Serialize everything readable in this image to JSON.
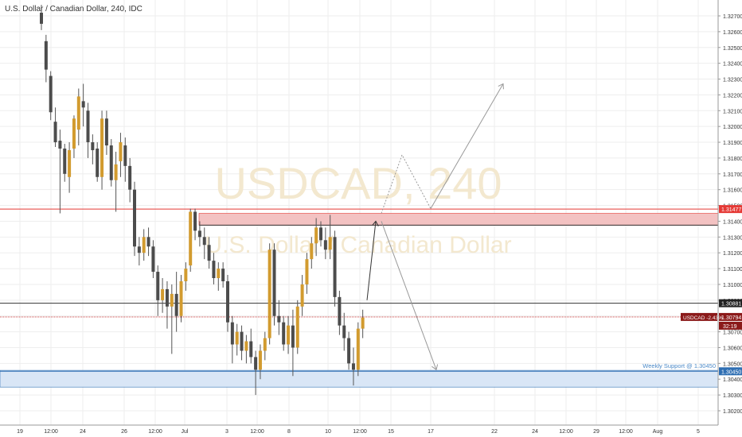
{
  "chart_title": "U.S. Dollar / Canadian Dollar, 240, IDC",
  "watermark": {
    "symbol": "USDCAD, 240",
    "name": "U.S. Dollar / Canadian Dollar"
  },
  "colors": {
    "bg": "#ffffff",
    "grid": "#eeeeee",
    "wick": "#555555",
    "bull": "#d29b2f",
    "bear": "#4c4c4c",
    "resistance": "#e53935",
    "support": "#2f6fb3",
    "price_line": "#c62828",
    "axis_text": "#333333",
    "watermark": "#efe3c6"
  },
  "chart_data": {
    "type": "candlestick",
    "title": "U.S. Dollar / Canadian Dollar, 240, IDC",
    "x_ticks": [
      "19",
      "12:00",
      "24",
      "26",
      "12:00",
      "Jul",
      "3",
      "12:00",
      "8",
      "10",
      "12:00",
      "15",
      "17",
      "22",
      "24",
      "12:00",
      "29",
      "12:00",
      "Aug",
      "5"
    ],
    "y_ticks": [
      "1.32700",
      "1.32600",
      "1.32500",
      "1.32400",
      "1.32300",
      "1.32200",
      "1.32100",
      "1.32000",
      "1.31900",
      "1.31800",
      "1.31700",
      "1.31600",
      "1.31500",
      "1.31400",
      "1.31300",
      "1.31200",
      "1.31100",
      "1.31000",
      "1.30900",
      "1.30800",
      "1.30700",
      "1.30600",
      "1.30500",
      "1.30400",
      "1.30300",
      "1.30200"
    ],
    "ylim": [
      1.3015,
      1.3277
    ],
    "candles": [
      {
        "o": 1.3272,
        "h": 1.3277,
        "l": 1.3261,
        "c": 1.3265
      },
      {
        "o": 1.3254,
        "h": 1.3258,
        "l": 1.3228,
        "c": 1.3236
      },
      {
        "o": 1.3232,
        "h": 1.3235,
        "l": 1.3204,
        "c": 1.3209
      },
      {
        "o": 1.3203,
        "h": 1.3212,
        "l": 1.3187,
        "c": 1.319
      },
      {
        "o": 1.3191,
        "h": 1.3198,
        "l": 1.3145,
        "c": 1.3186
      },
      {
        "o": 1.3186,
        "h": 1.3189,
        "l": 1.3165,
        "c": 1.317
      },
      {
        "o": 1.3168,
        "h": 1.319,
        "l": 1.3158,
        "c": 1.3185
      },
      {
        "o": 1.3186,
        "h": 1.3207,
        "l": 1.318,
        "c": 1.3205
      },
      {
        "o": 1.3198,
        "h": 1.3224,
        "l": 1.3188,
        "c": 1.3219
      },
      {
        "o": 1.3216,
        "h": 1.3227,
        "l": 1.32,
        "c": 1.3212
      },
      {
        "o": 1.321,
        "h": 1.3215,
        "l": 1.318,
        "c": 1.319
      },
      {
        "o": 1.319,
        "h": 1.3195,
        "l": 1.3176,
        "c": 1.3185
      },
      {
        "o": 1.3186,
        "h": 1.319,
        "l": 1.3165,
        "c": 1.3168
      },
      {
        "o": 1.3168,
        "h": 1.321,
        "l": 1.316,
        "c": 1.3205
      },
      {
        "o": 1.3205,
        "h": 1.321,
        "l": 1.3182,
        "c": 1.3188
      },
      {
        "o": 1.3188,
        "h": 1.3192,
        "l": 1.3162,
        "c": 1.3166
      },
      {
        "o": 1.3166,
        "h": 1.3184,
        "l": 1.3146,
        "c": 1.3176
      },
      {
        "o": 1.3178,
        "h": 1.3196,
        "l": 1.3168,
        "c": 1.319
      },
      {
        "o": 1.3188,
        "h": 1.3193,
        "l": 1.3165,
        "c": 1.3175
      },
      {
        "o": 1.3175,
        "h": 1.318,
        "l": 1.3152,
        "c": 1.316
      },
      {
        "o": 1.316,
        "h": 1.3165,
        "l": 1.3118,
        "c": 1.3124
      },
      {
        "o": 1.3124,
        "h": 1.313,
        "l": 1.3112,
        "c": 1.312
      },
      {
        "o": 1.312,
        "h": 1.3135,
        "l": 1.3115,
        "c": 1.313
      },
      {
        "o": 1.313,
        "h": 1.3136,
        "l": 1.3118,
        "c": 1.3124
      },
      {
        "o": 1.3124,
        "h": 1.3128,
        "l": 1.3104,
        "c": 1.3108
      },
      {
        "o": 1.3108,
        "h": 1.3112,
        "l": 1.308,
        "c": 1.309
      },
      {
        "o": 1.309,
        "h": 1.3104,
        "l": 1.3082,
        "c": 1.3097
      },
      {
        "o": 1.3097,
        "h": 1.3102,
        "l": 1.3072,
        "c": 1.3086
      },
      {
        "o": 1.3086,
        "h": 1.31,
        "l": 1.3056,
        "c": 1.3094
      },
      {
        "o": 1.3094,
        "h": 1.3108,
        "l": 1.307,
        "c": 1.308
      },
      {
        "o": 1.308,
        "h": 1.3106,
        "l": 1.3076,
        "c": 1.3102
      },
      {
        "o": 1.3102,
        "h": 1.3114,
        "l": 1.3096,
        "c": 1.311
      },
      {
        "o": 1.3112,
        "h": 1.3148,
        "l": 1.3108,
        "c": 1.3146
      },
      {
        "o": 1.3146,
        "h": 1.3148,
        "l": 1.3128,
        "c": 1.3134
      },
      {
        "o": 1.3134,
        "h": 1.314,
        "l": 1.3124,
        "c": 1.313
      },
      {
        "o": 1.313,
        "h": 1.3136,
        "l": 1.3116,
        "c": 1.3125
      },
      {
        "o": 1.3125,
        "h": 1.313,
        "l": 1.311,
        "c": 1.3115
      },
      {
        "o": 1.3115,
        "h": 1.312,
        "l": 1.31,
        "c": 1.3104
      },
      {
        "o": 1.3104,
        "h": 1.3114,
        "l": 1.3096,
        "c": 1.311
      },
      {
        "o": 1.311,
        "h": 1.3114,
        "l": 1.3098,
        "c": 1.3102
      },
      {
        "o": 1.3102,
        "h": 1.3106,
        "l": 1.307,
        "c": 1.3076
      },
      {
        "o": 1.3076,
        "h": 1.308,
        "l": 1.305,
        "c": 1.3062
      },
      {
        "o": 1.3062,
        "h": 1.3075,
        "l": 1.3055,
        "c": 1.307
      },
      {
        "o": 1.307,
        "h": 1.3074,
        "l": 1.3052,
        "c": 1.3058
      },
      {
        "o": 1.3058,
        "h": 1.3068,
        "l": 1.305,
        "c": 1.3064
      },
      {
        "o": 1.3064,
        "h": 1.3072,
        "l": 1.305,
        "c": 1.3054
      },
      {
        "o": 1.3054,
        "h": 1.3058,
        "l": 1.303,
        "c": 1.3046
      },
      {
        "o": 1.3046,
        "h": 1.3062,
        "l": 1.304,
        "c": 1.3058
      },
      {
        "o": 1.3058,
        "h": 1.307,
        "l": 1.3052,
        "c": 1.3066
      },
      {
        "o": 1.3066,
        "h": 1.3126,
        "l": 1.3062,
        "c": 1.3122
      },
      {
        "o": 1.3122,
        "h": 1.3126,
        "l": 1.3074,
        "c": 1.308
      },
      {
        "o": 1.308,
        "h": 1.309,
        "l": 1.3068,
        "c": 1.3076
      },
      {
        "o": 1.3076,
        "h": 1.308,
        "l": 1.3058,
        "c": 1.3062
      },
      {
        "o": 1.3062,
        "h": 1.308,
        "l": 1.3056,
        "c": 1.3074
      },
      {
        "o": 1.3074,
        "h": 1.3084,
        "l": 1.3042,
        "c": 1.306
      },
      {
        "o": 1.306,
        "h": 1.309,
        "l": 1.3056,
        "c": 1.3086
      },
      {
        "o": 1.3086,
        "h": 1.3106,
        "l": 1.308,
        "c": 1.31
      },
      {
        "o": 1.31,
        "h": 1.312,
        "l": 1.3094,
        "c": 1.3116
      },
      {
        "o": 1.3116,
        "h": 1.313,
        "l": 1.311,
        "c": 1.3126
      },
      {
        "o": 1.3126,
        "h": 1.3142,
        "l": 1.3118,
        "c": 1.3136
      },
      {
        "o": 1.3136,
        "h": 1.314,
        "l": 1.3124,
        "c": 1.3128
      },
      {
        "o": 1.3128,
        "h": 1.3136,
        "l": 1.3116,
        "c": 1.3122
      },
      {
        "o": 1.3122,
        "h": 1.3144,
        "l": 1.3116,
        "c": 1.313
      },
      {
        "o": 1.313,
        "h": 1.3134,
        "l": 1.3086,
        "c": 1.3092
      },
      {
        "o": 1.3092,
        "h": 1.3096,
        "l": 1.3068,
        "c": 1.3074
      },
      {
        "o": 1.3074,
        "h": 1.3082,
        "l": 1.3058,
        "c": 1.3066
      },
      {
        "o": 1.3066,
        "h": 1.307,
        "l": 1.3046,
        "c": 1.305
      },
      {
        "o": 1.305,
        "h": 1.306,
        "l": 1.3036,
        "c": 1.3046
      },
      {
        "o": 1.3046,
        "h": 1.3076,
        "l": 1.3042,
        "c": 1.3072
      },
      {
        "o": 1.3072,
        "h": 1.3084,
        "l": 1.3066,
        "c": 1.3079
      }
    ],
    "levels": {
      "resistance": 1.31477,
      "zone_top": 1.3145,
      "zone_bottom": 1.31375,
      "black_line": 1.30881,
      "last_price": 1.30794,
      "support_top": 1.30456,
      "support_line": 1.3045,
      "support_bottom": 1.3035
    },
    "labels": {
      "resistance": "1.31477",
      "black_line": "1.30881",
      "last_price_symbol": "USDCAD -2.43%",
      "last_price": "1.30794",
      "countdown": "32:19",
      "support": "1.30450",
      "support_text": "Weekly Support @ 1.30450"
    }
  }
}
